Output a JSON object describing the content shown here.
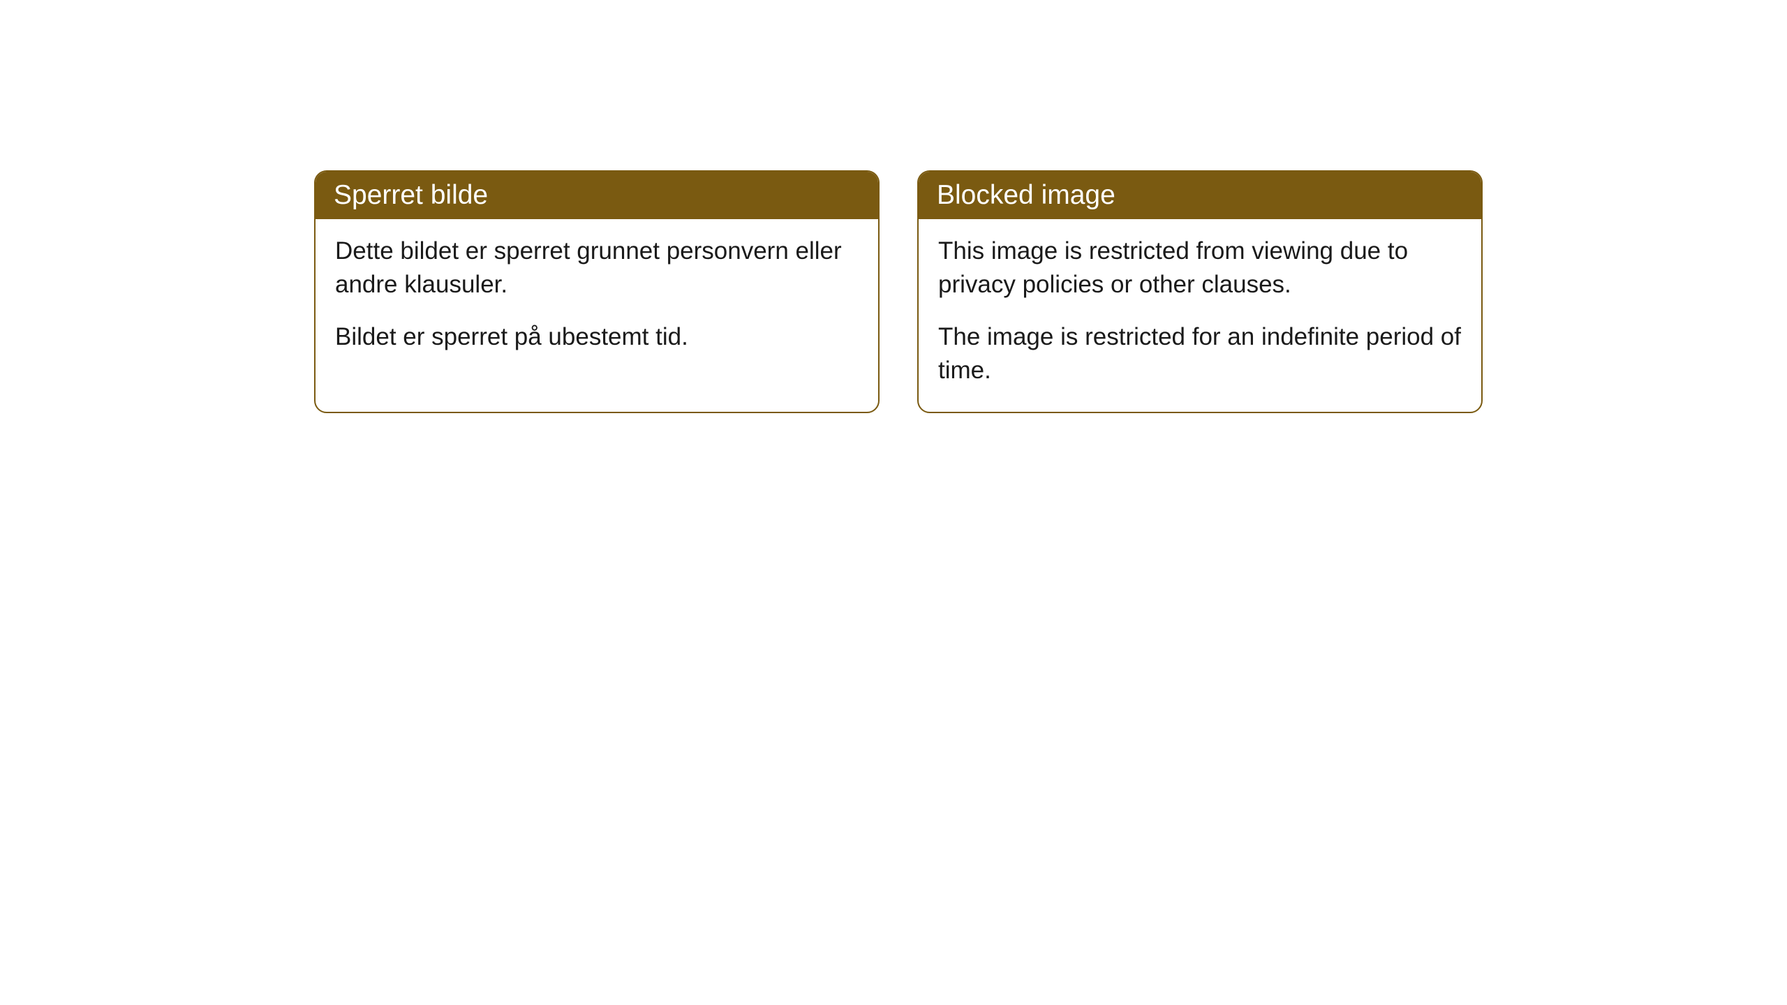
{
  "cards": [
    {
      "title": "Sperret bilde",
      "paragraph1": "Dette bildet er sperret grunnet personvern eller andre klausuler.",
      "paragraph2": "Bildet er sperret på ubestemt tid."
    },
    {
      "title": "Blocked image",
      "paragraph1": "This image is restricted from viewing due to privacy policies or other clauses.",
      "paragraph2": "The image is restricted for an indefinite period of time."
    }
  ],
  "styling": {
    "header_background_color": "#7a5a11",
    "header_text_color": "#ffffff",
    "border_color": "#7a5a11",
    "body_background_color": "#ffffff",
    "body_text_color": "#1a1a1a",
    "border_radius": 18,
    "header_fontsize": 39,
    "body_fontsize": 35
  }
}
